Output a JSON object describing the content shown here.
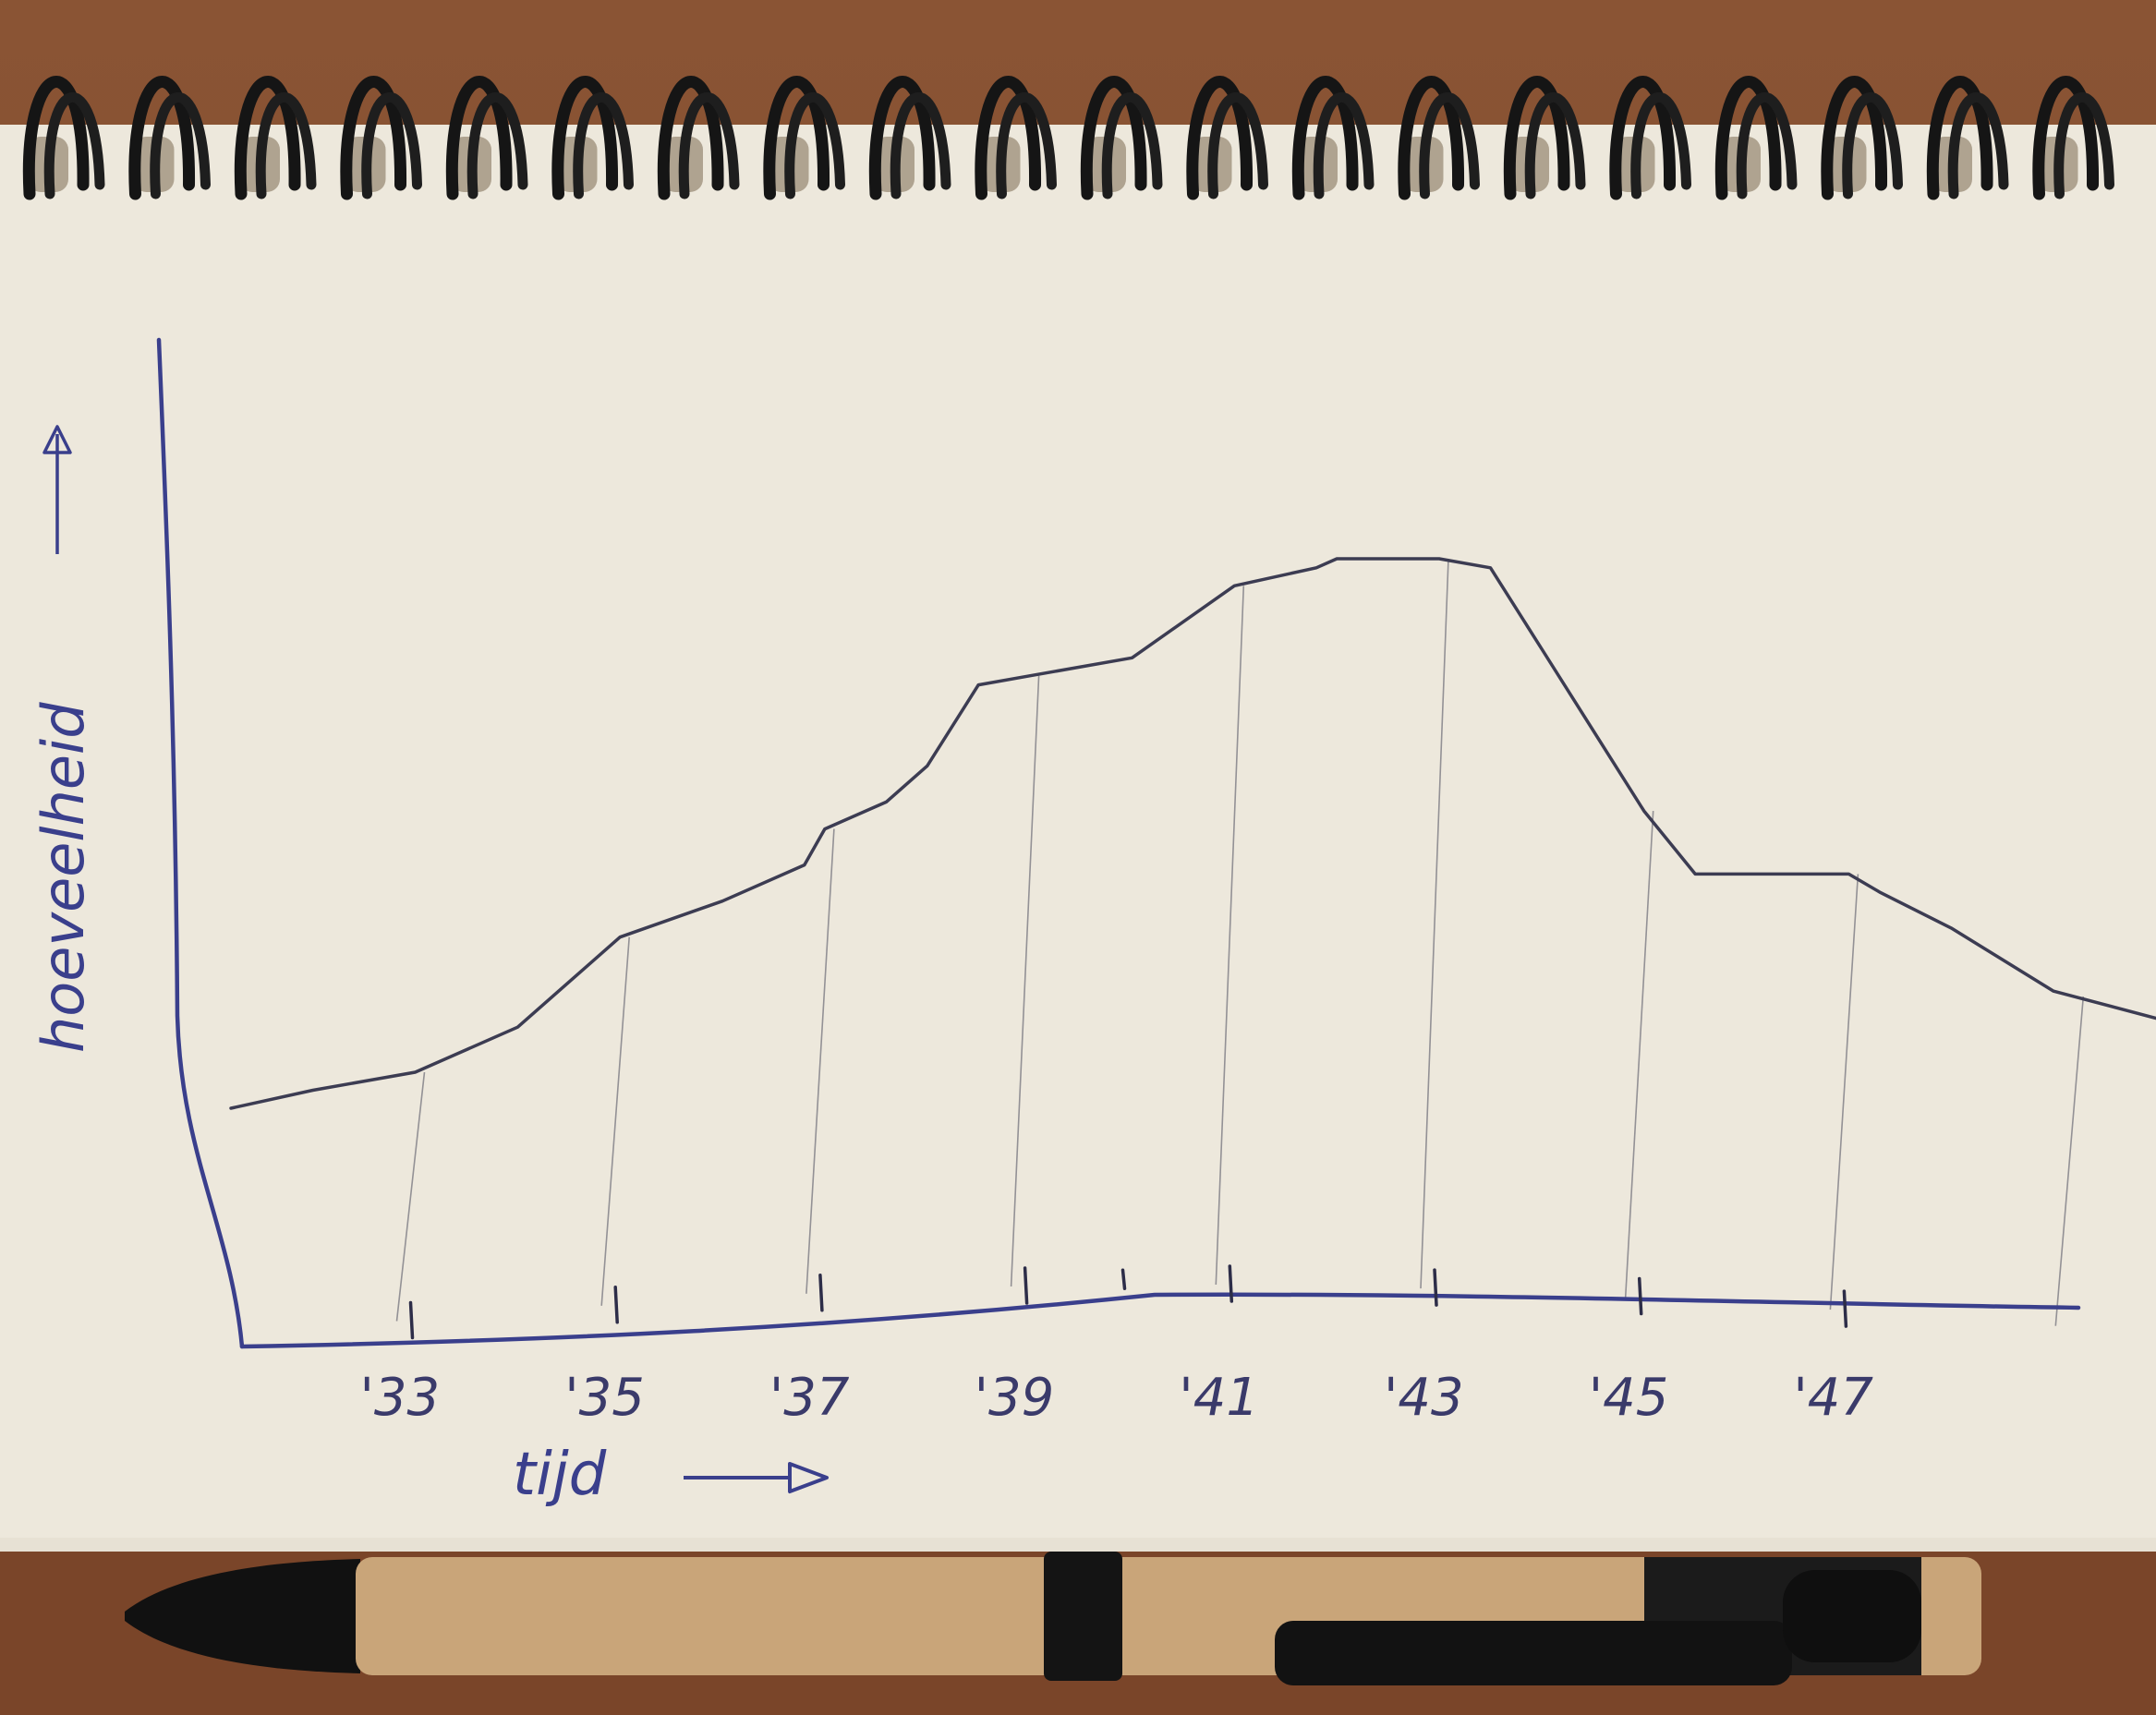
{
  "chart_data": {
    "type": "line",
    "title": "",
    "xlabel": "tijd",
    "ylabel": "hoeveelheid",
    "x_ticks": [
      "'33",
      "'35",
      "'37",
      "'39",
      "'41",
      "'43",
      "'45",
      "'47"
    ],
    "x_range": [
      1931.2,
      1950
    ],
    "y_range": [
      0,
      100
    ],
    "grid": "vertical guide lines at tick years",
    "series": [
      {
        "x": [
          1931.2,
          1932,
          1933,
          1934,
          1934.5,
          1935,
          1936,
          1936.8,
          1937,
          1937.6,
          1938,
          1938.5,
          1939,
          1940,
          1941,
          1941.8,
          1942,
          1942.5,
          1943,
          1943.5,
          1944,
          1944.5,
          1945,
          1945.5,
          1946,
          1947,
          1947.3,
          1948,
          1949,
          1950
        ],
        "y": [
          24,
          26,
          28,
          33,
          38,
          43,
          47,
          51,
          55,
          58,
          62,
          71,
          72,
          74,
          82,
          84,
          85,
          85,
          85,
          84,
          75,
          66,
          57,
          50,
          50,
          50,
          48,
          44,
          37,
          34
        ]
      }
    ]
  },
  "pen": {
    "ink_color": "#3a3f8c",
    "line_color": "#3c3c52"
  }
}
